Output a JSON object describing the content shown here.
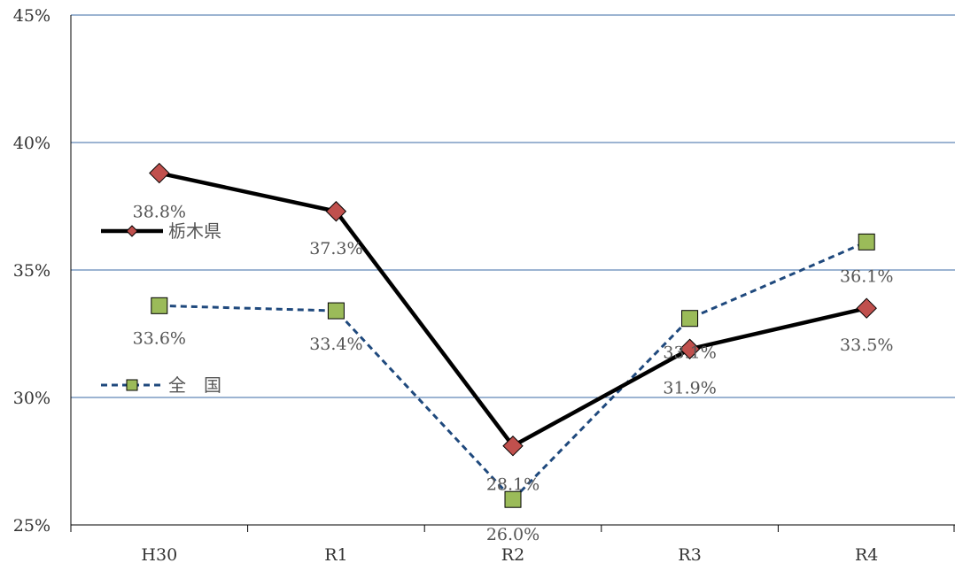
{
  "chart_data": {
    "type": "line",
    "categories": [
      "H30",
      "R1",
      "R2",
      "R3",
      "R4"
    ],
    "ylim": [
      25,
      45
    ],
    "yticks": [
      25,
      30,
      35,
      40,
      45
    ],
    "ytick_labels": [
      "25%",
      "30%",
      "35%",
      "40%",
      "45%"
    ],
    "grid": true,
    "series": [
      {
        "name": "栃木県",
        "values": [
          38.8,
          37.3,
          28.1,
          31.9,
          33.5
        ],
        "labels": [
          "38.8%",
          "37.3%",
          "28.1%",
          "31.9%",
          "33.5%"
        ],
        "color": "#000000",
        "marker": "diamond",
        "marker_fill": "#c0504d",
        "line_style": "solid"
      },
      {
        "name": "全　国",
        "values": [
          33.6,
          33.4,
          26.0,
          33.1,
          36.1
        ],
        "labels": [
          "33.6%",
          "33.4%",
          "26.0%",
          "33.1%",
          "36.1%"
        ],
        "color": "#1f497d",
        "marker": "square",
        "marker_fill": "#9bbb59",
        "line_style": "dashed"
      }
    ]
  }
}
